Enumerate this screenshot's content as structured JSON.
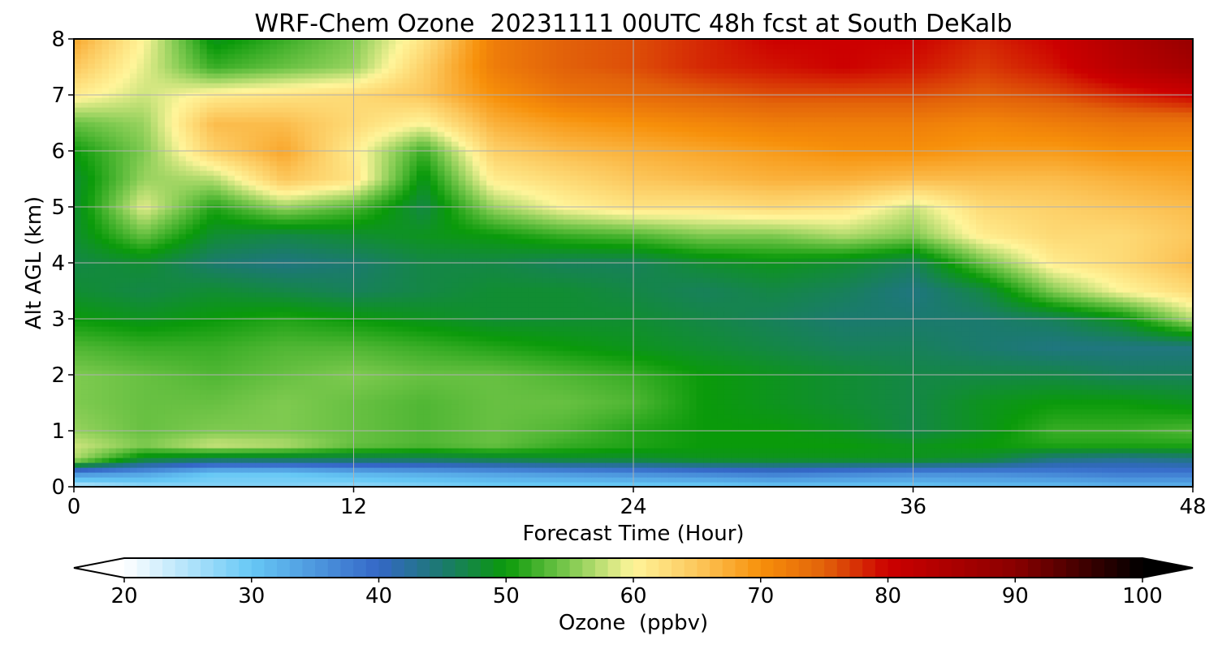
{
  "chart_data": {
    "type": "heatmap",
    "title": "WRF-Chem Ozone  20231111 00UTC 48h fcst at South DeKalb",
    "xlabel": "Forecast Time (Hour)",
    "ylabel": "Alt AGL (km)",
    "xlim": [
      0,
      48
    ],
    "ylim": [
      0,
      8
    ],
    "x_ticks": [
      "0",
      "12",
      "24",
      "36",
      "48"
    ],
    "y_ticks": [
      "0",
      "1",
      "2",
      "3",
      "4",
      "5",
      "6",
      "7",
      "8"
    ],
    "grid": true,
    "colorbar": {
      "label": "Ozone  (ppbv)",
      "range": [
        20,
        100
      ],
      "ticks": [
        "20",
        "30",
        "40",
        "50",
        "60",
        "70",
        "80",
        "90",
        "100"
      ],
      "extend": "both",
      "stops": [
        {
          "value": 20,
          "color": "#ffffff"
        },
        {
          "value": 30,
          "color": "#66c8f5"
        },
        {
          "value": 40,
          "color": "#3467c7"
        },
        {
          "value": 45,
          "color": "#1b7a6e"
        },
        {
          "value": 50,
          "color": "#0a9a0a"
        },
        {
          "value": 55,
          "color": "#7fca50"
        },
        {
          "value": 60,
          "color": "#fff59a"
        },
        {
          "value": 65,
          "color": "#fcc75c"
        },
        {
          "value": 70,
          "color": "#f7900a"
        },
        {
          "value": 75,
          "color": "#e2620a"
        },
        {
          "value": 80,
          "color": "#cc0000"
        },
        {
          "value": 90,
          "color": "#8a0000"
        },
        {
          "value": 100,
          "color": "#000000"
        }
      ]
    },
    "x": [
      0,
      3,
      6,
      9,
      12,
      15,
      18,
      21,
      24,
      27,
      30,
      33,
      36,
      39,
      42,
      45,
      48
    ],
    "y": [
      0,
      0.25,
      0.5,
      0.75,
      1.0,
      1.5,
      2.0,
      2.5,
      3.0,
      3.5,
      4.0,
      4.5,
      5.0,
      5.5,
      6.0,
      6.5,
      7.0,
      7.5,
      8.0
    ],
    "z": [
      [
        24,
        27,
        28,
        28,
        27,
        28,
        29,
        29,
        29,
        29,
        30,
        30,
        30,
        31,
        31,
        32,
        32
      ],
      [
        36,
        34,
        30,
        30,
        32,
        33,
        34,
        35,
        36,
        37,
        38,
        37,
        36,
        36,
        37,
        38,
        38
      ],
      [
        57,
        48,
        46,
        46,
        46,
        46,
        47,
        48,
        48,
        49,
        49,
        49,
        49,
        48,
        44,
        43,
        44
      ],
      [
        58,
        55,
        58,
        57,
        54,
        53,
        54,
        52,
        51,
        50,
        50,
        50,
        49,
        50,
        51,
        51,
        51
      ],
      [
        56,
        54,
        55,
        55,
        54,
        53,
        54,
        53,
        51,
        50,
        50,
        49,
        47,
        49,
        52,
        52,
        53
      ],
      [
        55,
        54,
        54,
        55,
        54,
        53,
        54,
        54,
        53,
        50,
        49,
        48,
        47,
        49,
        50,
        50,
        49
      ],
      [
        55,
        54,
        53,
        54,
        55,
        54,
        54,
        53,
        52,
        50,
        49,
        48,
        47,
        47,
        47,
        46,
        46
      ],
      [
        53,
        52,
        52,
        53,
        53,
        52,
        51,
        50,
        49,
        48,
        47,
        46,
        46,
        45,
        44,
        44,
        44
      ],
      [
        50,
        49,
        50,
        51,
        50,
        49,
        48,
        48,
        48,
        47,
        46,
        45,
        45,
        45,
        46,
        49,
        57
      ],
      [
        48,
        47,
        48,
        47,
        46,
        47,
        48,
        48,
        47,
        46,
        47,
        46,
        44,
        47,
        55,
        60,
        63
      ],
      [
        47,
        48,
        45,
        44,
        45,
        47,
        47,
        46,
        46,
        48,
        49,
        48,
        46,
        54,
        61,
        63,
        66
      ],
      [
        48,
        54,
        48,
        47,
        48,
        49,
        50,
        52,
        53,
        55,
        55,
        57,
        55,
        61,
        63,
        63,
        65
      ],
      [
        48,
        59,
        51,
        56,
        53,
        47,
        56,
        60,
        62,
        62,
        63,
        62,
        58,
        63,
        64,
        65,
        66
      ],
      [
        48,
        56,
        57,
        65,
        62,
        49,
        61,
        63,
        65,
        66,
        67,
        67,
        66,
        66,
        66,
        67,
        68
      ],
      [
        50,
        55,
        64,
        68,
        61,
        52,
        64,
        66,
        67,
        68,
        69,
        70,
        70,
        69,
        69,
        70,
        70
      ],
      [
        54,
        56,
        66,
        66,
        63,
        60,
        67,
        69,
        70,
        71,
        72,
        72,
        72,
        71,
        72,
        73,
        73
      ],
      [
        61,
        58,
        61,
        62,
        63,
        65,
        70,
        73,
        74,
        75,
        76,
        76,
        76,
        75,
        76,
        78,
        80
      ],
      [
        65,
        59,
        52,
        54,
        56,
        64,
        72,
        75,
        76,
        78,
        79,
        80,
        79,
        77,
        79,
        83,
        86
      ],
      [
        68,
        60,
        49,
        52,
        55,
        62,
        72,
        75,
        76,
        78,
        80,
        80,
        80,
        78,
        80,
        84,
        88
      ]
    ]
  }
}
